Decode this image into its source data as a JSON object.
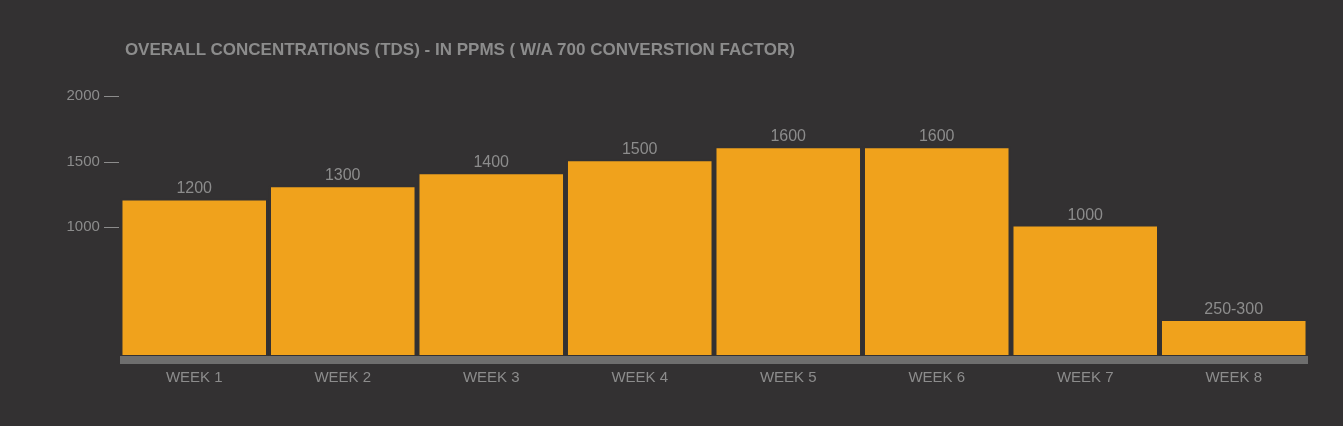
{
  "chart_data": {
    "type": "bar",
    "title": "OVERALL CONCENTRATIONS (TDS) - IN PPMS ( W/A 700 CONVERSTION FACTOR)",
    "categories": [
      "WEEK 1",
      "WEEK 2",
      "WEEK 3",
      "WEEK 4",
      "WEEK 5",
      "WEEK 6",
      "WEEK 7",
      "WEEK 8"
    ],
    "values": [
      1200,
      1300,
      1400,
      1500,
      1600,
      1600,
      1000,
      275
    ],
    "value_labels": [
      "1200",
      "1300",
      "1400",
      "1500",
      "1600",
      "1600",
      "1000",
      "250-300"
    ],
    "color": "#f0a21c",
    "ylim": [
      0,
      2000
    ],
    "yticks": [
      {
        "value": 1000,
        "label": "1000 —"
      },
      {
        "value": 1500,
        "label": "1500 —"
      },
      {
        "value": 2000,
        "label": "2000 —"
      }
    ]
  }
}
